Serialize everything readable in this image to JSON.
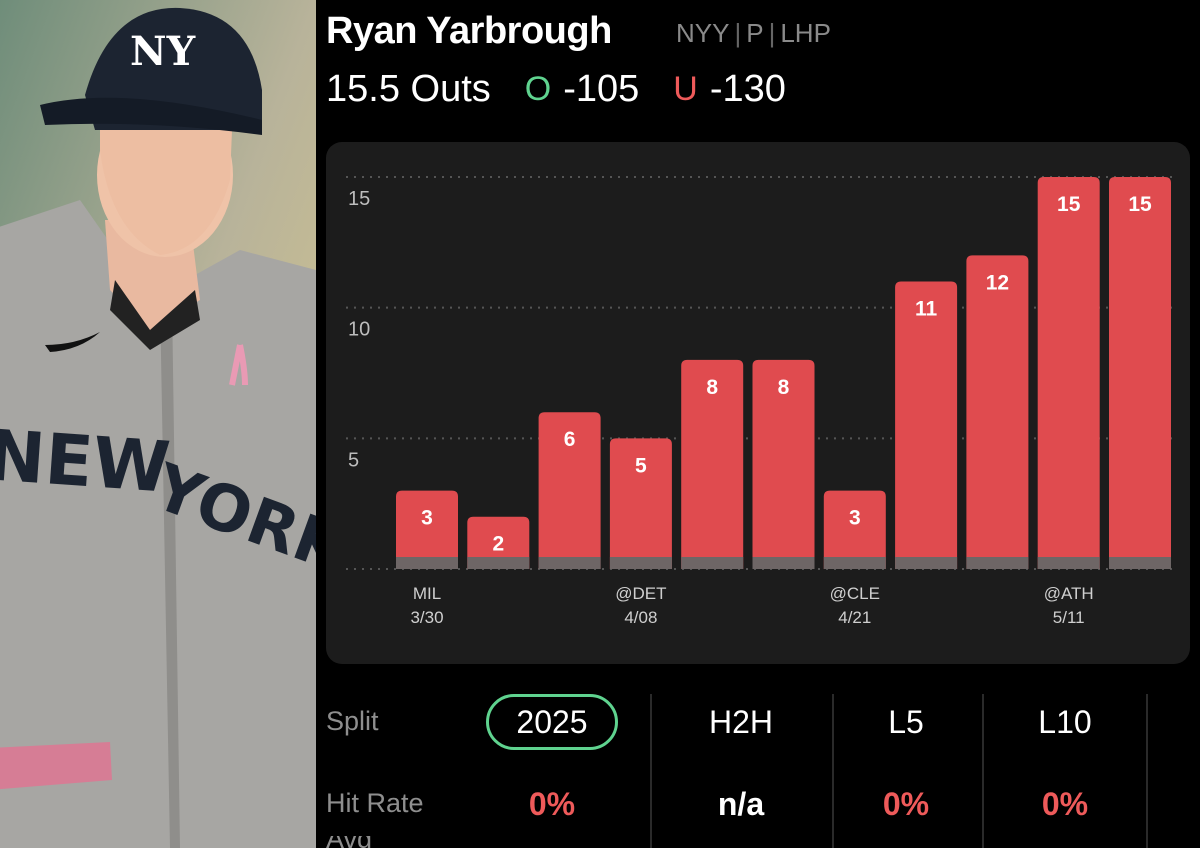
{
  "player": {
    "name": "Ryan Yarbrough",
    "team": "NYY",
    "position": "P",
    "hand": "LHP"
  },
  "prop": {
    "line": "15.5 Outs",
    "over_letter": "O",
    "over_odds": "-105",
    "under_letter": "U",
    "under_odds": "-130",
    "over_color": "#5fd38f",
    "under_color": "#ee5a5a"
  },
  "chart_data": {
    "type": "bar",
    "categories": [
      "MIL 3/30",
      "",
      "",
      "@DET 4/08",
      "",
      "",
      "@CLE 4/21",
      "",
      "",
      "@ATH 5/11",
      ""
    ],
    "x_labels": [
      {
        "index": 0,
        "opp": "MIL",
        "date": "3/30"
      },
      {
        "index": 3,
        "opp": "@DET",
        "date": "4/08"
      },
      {
        "index": 6,
        "opp": "@CLE",
        "date": "4/21"
      },
      {
        "index": 9,
        "opp": "@ATH",
        "date": "5/11"
      }
    ],
    "values": [
      3,
      2,
      6,
      5,
      8,
      8,
      3,
      11,
      12,
      15,
      15
    ],
    "yticks": [
      5,
      10,
      15
    ],
    "ylim": [
      0,
      15
    ],
    "line": 15.5,
    "bar_color": "#e04b4f",
    "title": "",
    "xlabel": "",
    "ylabel": ""
  },
  "splits": {
    "row1_label": "Split",
    "row2_label": "Hit Rate",
    "row3_label": "Avg",
    "columns": [
      {
        "label": "2025",
        "hit_rate": "0%",
        "selected": true
      },
      {
        "label": "H2H",
        "hit_rate": "n/a",
        "selected": false
      },
      {
        "label": "L5",
        "hit_rate": "0%",
        "selected": false
      },
      {
        "label": "L10",
        "hit_rate": "0%",
        "selected": false
      }
    ]
  }
}
